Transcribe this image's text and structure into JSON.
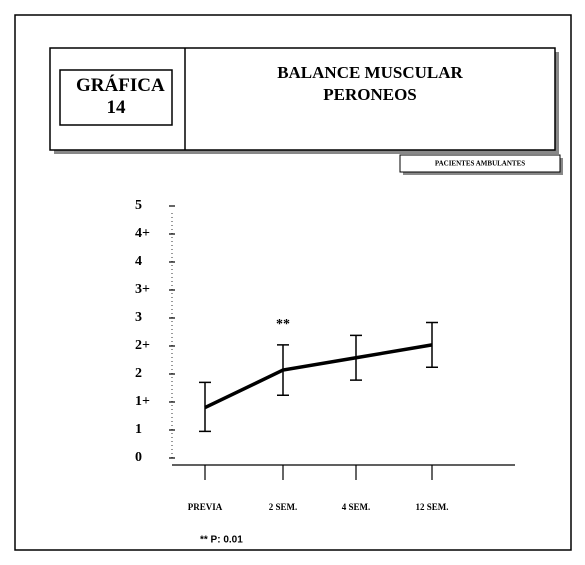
{
  "chart_data": {
    "type": "line",
    "title": "BALANCE MUSCULAR PERONEOS",
    "figure_label": "GRÁFICA 14",
    "subtitle": "PACIENTES AMBULANTES",
    "categories": [
      "PREVIA",
      "2 SEM.",
      "4 SEM.",
      "12 SEM."
    ],
    "series": [
      {
        "name": "Balance muscular",
        "color": "#000000",
        "values": [
          1.4,
          2.07,
          2.29,
          2.52
        ],
        "errors": [
          0.45,
          0.45,
          0.4,
          0.4
        ]
      }
    ],
    "ylim": [
      0,
      5
    ],
    "yticks": [
      0,
      1,
      {
        "value": 1.5,
        "label": "1+"
      },
      2,
      {
        "value": 2.5,
        "label": "2+"
      },
      3,
      {
        "value": 3.5,
        "label": "3+"
      },
      4,
      {
        "value": 4.5,
        "label": "4+"
      },
      5
    ],
    "annotations": [
      {
        "text": "**",
        "category": 1
      }
    ],
    "footnote": "** P: 0.01"
  }
}
